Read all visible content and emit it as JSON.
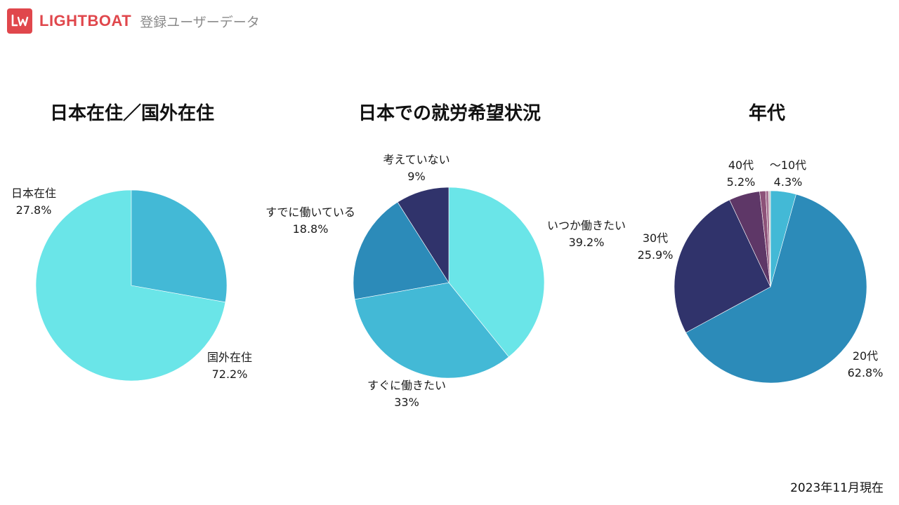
{
  "header": {
    "brand": "LIGHTBOAT",
    "subtitle": "登録ユーザーデータ",
    "brand_color": "#e0474c"
  },
  "footer": {
    "note": "2023年11月現在"
  },
  "chart_data": [
    {
      "type": "pie",
      "title": "日本在住／国外在住",
      "slices": [
        {
          "label": "国外在住",
          "value_label": "72.2%",
          "value": 72.2,
          "color": "#6ae5e8"
        },
        {
          "label": "日本在住",
          "value_label": "27.8%",
          "value": 27.8,
          "color": "#43b9d6"
        }
      ]
    },
    {
      "type": "pie",
      "title": "日本での就労希望状況",
      "slices": [
        {
          "label": "いつか働きたい",
          "value_label": "39.2%",
          "value": 39.2,
          "color": "#6ae5e8"
        },
        {
          "label": "すぐに働きたい",
          "value_label": "33%",
          "value": 33,
          "color": "#43b9d6"
        },
        {
          "label": "すでに働いている",
          "value_label": "18.8%",
          "value": 18.8,
          "color": "#2c8bb9"
        },
        {
          "label": "考えていない",
          "value_label": "9%",
          "value": 9,
          "color": "#30336b"
        }
      ]
    },
    {
      "type": "pie",
      "title": "年代",
      "slices": [
        {
          "label": "〜10代",
          "value_label": "4.3%",
          "value": 4.3,
          "color": "#43b9d6"
        },
        {
          "label": "20代",
          "value_label": "62.8%",
          "value": 62.8,
          "color": "#2c8bb9"
        },
        {
          "label": "30代",
          "value_label": "25.9%",
          "value": 25.9,
          "color": "#30336b"
        },
        {
          "label": "40代",
          "value_label": "5.2%",
          "value": 5.2,
          "color": "#5e3767"
        },
        {
          "label": "",
          "value_label": "",
          "value": 1.0,
          "color": "#8d5279"
        },
        {
          "label": "",
          "value_label": "",
          "value": 0.5,
          "color": "#a87293"
        },
        {
          "label": "",
          "value_label": "",
          "value": 0.3,
          "color": "#c8c8c8"
        }
      ]
    }
  ]
}
